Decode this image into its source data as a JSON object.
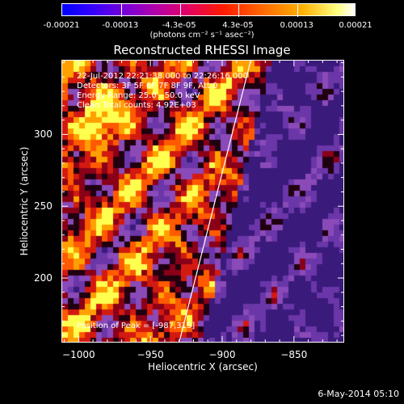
{
  "colorbar": {
    "tick_labels": [
      "-0.00021",
      "-0.00013",
      "-4.3e-05",
      "4.3e-05",
      "0.00013",
      "0.00021"
    ],
    "unit_label": "(photons cm⁻² s⁻¹ asec⁻²)"
  },
  "title": "Reconstructed RHESSI Image",
  "annotations": {
    "time_range": "22-Jul-2012 22:21:38.000 to 22:26:16.000",
    "detectors": "Detectors: 3F 5F 6F 7F 8F 9F, Att 0",
    "energy_range": "Energy Range: 25.0 - 50.0 keV",
    "counts": "Clean   Total counts: 4.92E+03",
    "peak": "Position of Peak = [-987,315]"
  },
  "footer_date": "6-May-2014 05:10",
  "chart_data": {
    "type": "heatmap",
    "title": "Reconstructed RHESSI Image",
    "xlabel": "Heliocentric X (arcsec)",
    "ylabel": "Heliocentric Y (arcsec)",
    "xlim": [
      -1012,
      -815
    ],
    "ylim": [
      155,
      352
    ],
    "x_ticks": [
      -1000,
      -950,
      -900,
      -850
    ],
    "y_ticks": [
      200,
      250,
      300
    ],
    "colorbar_range": [
      -0.00021,
      0.00021
    ],
    "colorbar_ticks": [
      -0.00021,
      -0.00013,
      -4.3e-05,
      4.3e-05,
      0.00013,
      0.00021
    ],
    "peak_position": [
      -987,
      315
    ],
    "limb_line": {
      "from": [
        -930,
        155
      ],
      "to": [
        -880,
        352
      ]
    },
    "colors": {
      "negative": "#7a3ab0",
      "positive_low": "#d0102a",
      "positive_mid": "#ff7a00",
      "peak": "#ffff40"
    }
  }
}
